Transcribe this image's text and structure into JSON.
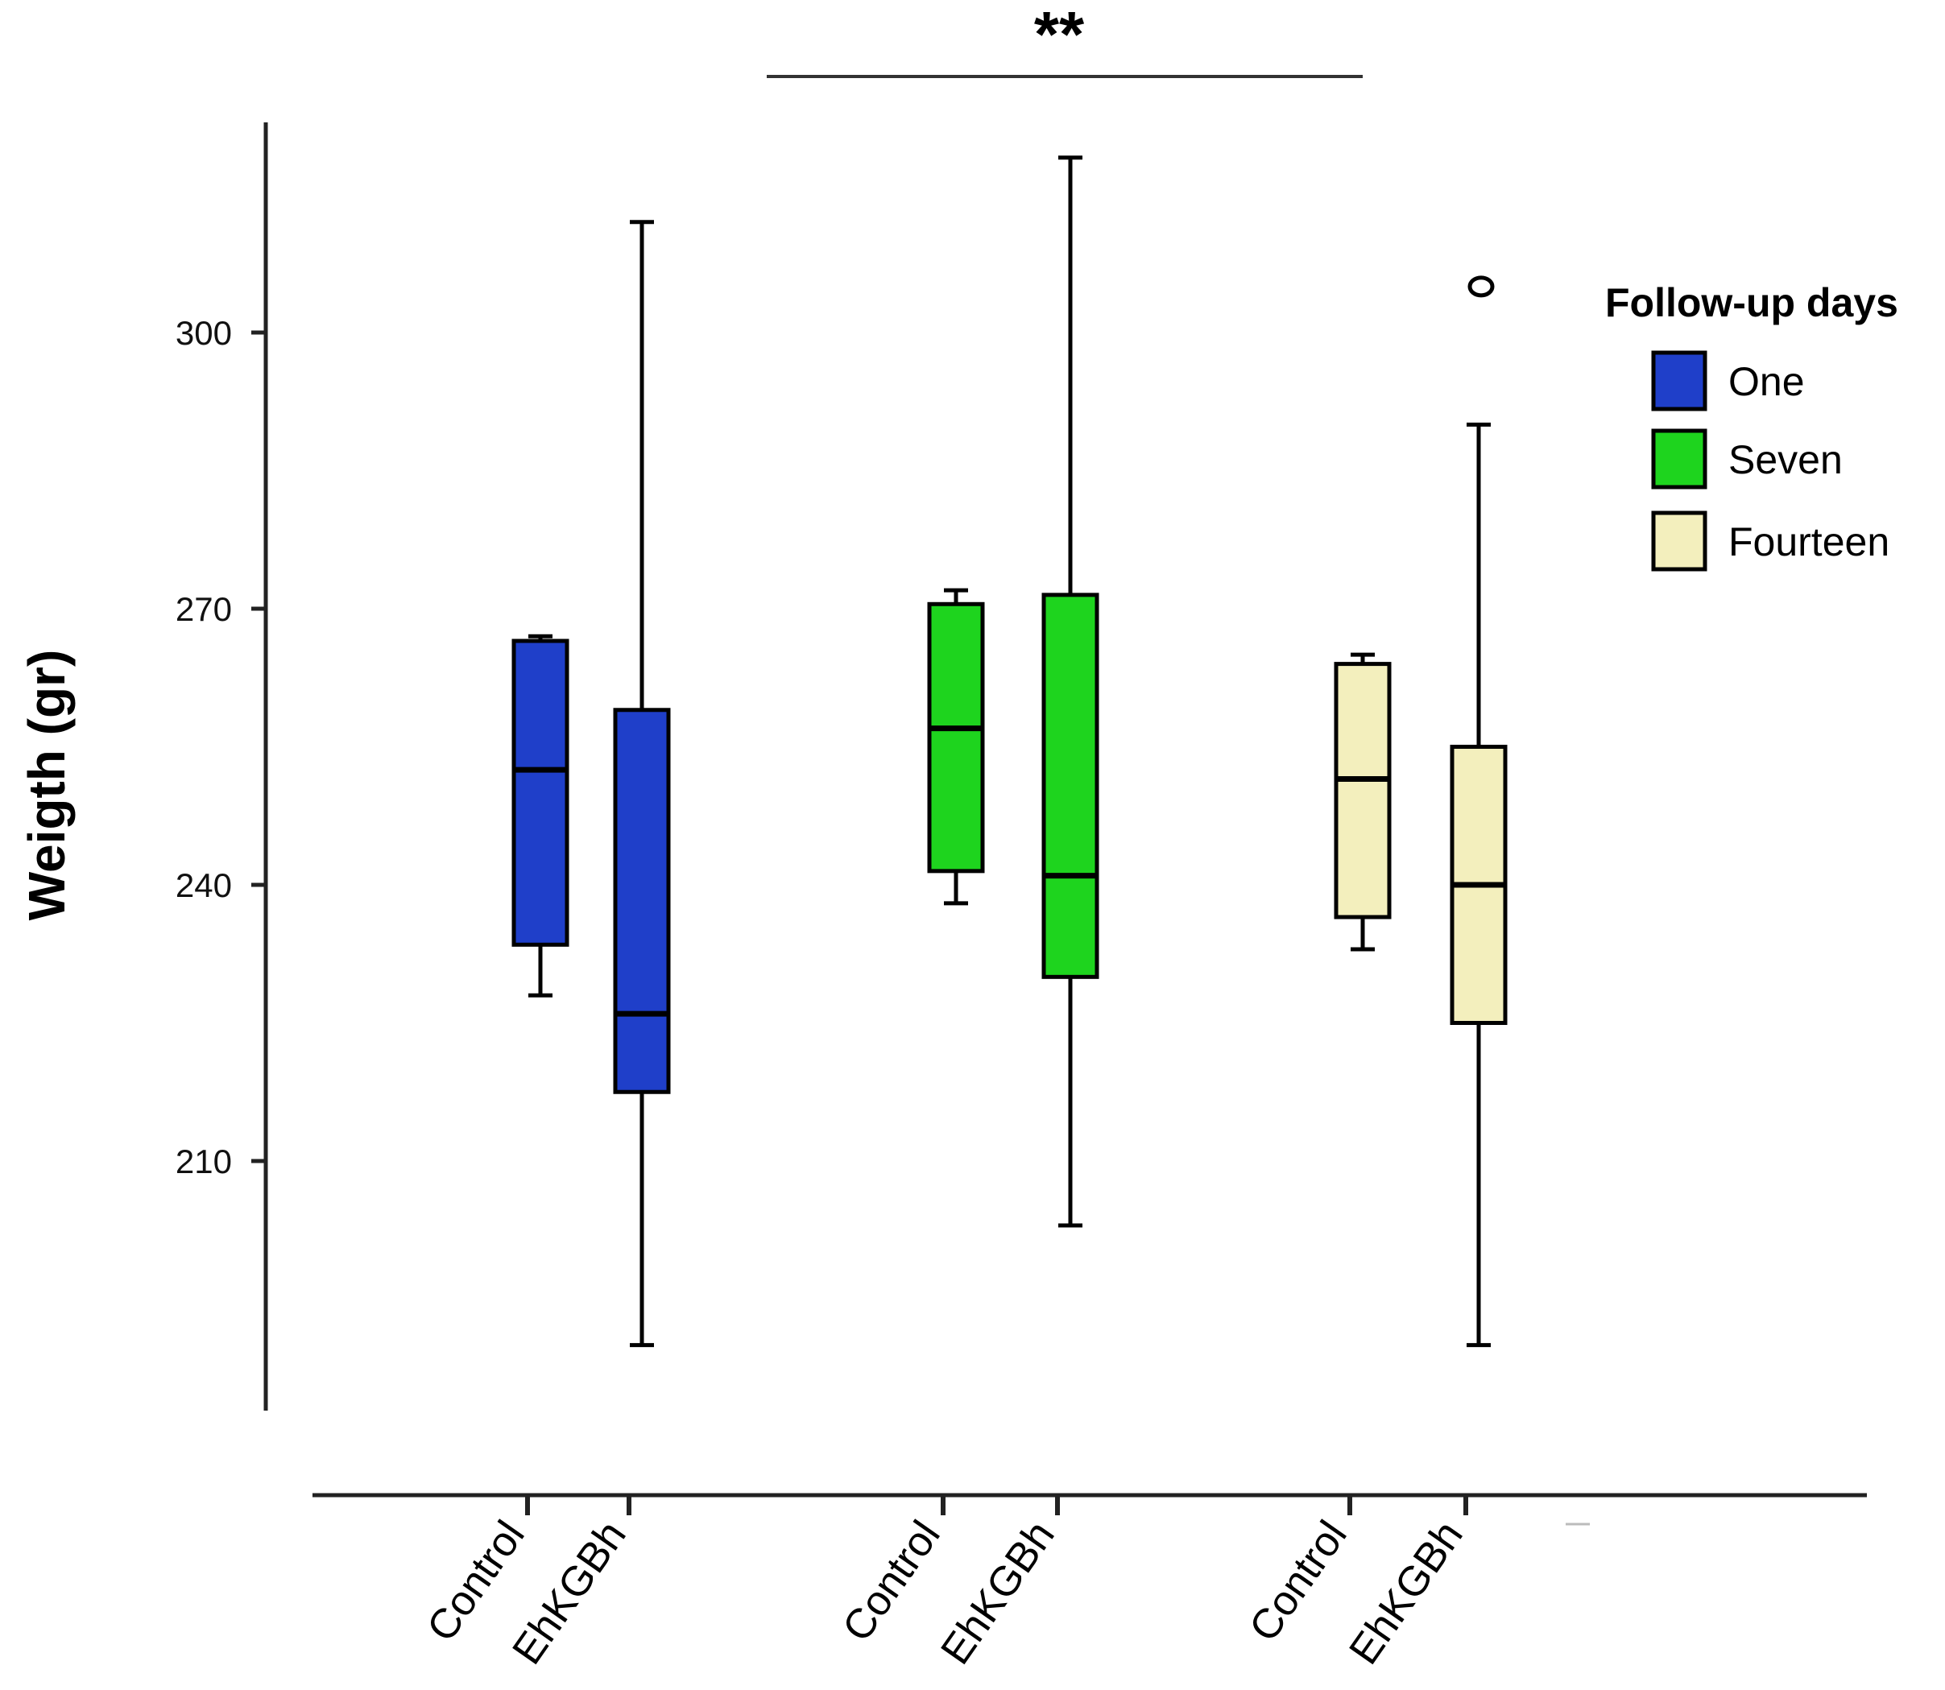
{
  "chart_data": {
    "type": "boxplot",
    "title": "",
    "xlabel": "",
    "ylabel": "Weigth (gr)",
    "ylim": [
      187,
      323
    ],
    "y_ticks": [
      210,
      240,
      270,
      300
    ],
    "grid": false,
    "significance": {
      "label": "**",
      "from_group": "One",
      "to_group": "Fourteen"
    },
    "legend": {
      "title": "Follow-up days",
      "position": "right",
      "entries": [
        {
          "name": "One",
          "color": "#1f3fc9"
        },
        {
          "name": "Seven",
          "color": "#1ed41e"
        },
        {
          "name": "Fourteen",
          "color": "#f3efbd"
        }
      ]
    },
    "boxes": [
      {
        "group": "One",
        "category": "Control",
        "whisker_low": 228,
        "q1": 233.5,
        "median": 252.5,
        "q3": 266.5,
        "whisker_high": 267,
        "outliers": []
      },
      {
        "group": "One",
        "category": "EhKGBh",
        "whisker_low": 190,
        "q1": 217.5,
        "median": 226,
        "q3": 259,
        "whisker_high": 312,
        "outliers": []
      },
      {
        "group": "Seven",
        "category": "Control",
        "whisker_low": 238,
        "q1": 241.5,
        "median": 257,
        "q3": 270.5,
        "whisker_high": 272,
        "outliers": []
      },
      {
        "group": "Seven",
        "category": "EhKGBh",
        "whisker_low": 203,
        "q1": 230,
        "median": 241,
        "q3": 271.5,
        "whisker_high": 319,
        "outliers": []
      },
      {
        "group": "Fourteen",
        "category": "Control",
        "whisker_low": 233,
        "q1": 236.5,
        "median": 251.5,
        "q3": 264,
        "whisker_high": 265,
        "outliers": []
      },
      {
        "group": "Fourteen",
        "category": "EhKGBh",
        "whisker_low": 190,
        "q1": 225,
        "median": 240,
        "q3": 255,
        "whisker_high": 290,
        "outliers": [
          305
        ]
      }
    ]
  }
}
